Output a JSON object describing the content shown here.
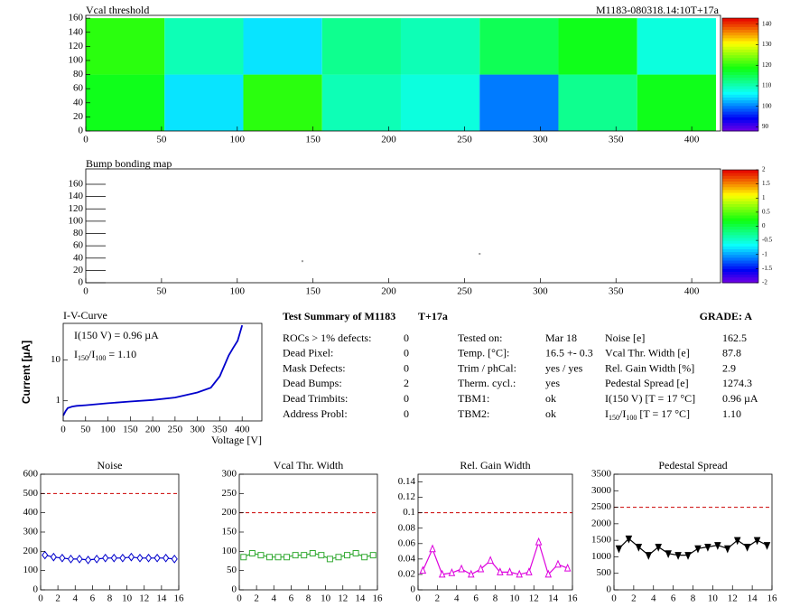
{
  "chart_data": [
    {
      "type": "heatmap",
      "title": "Vcal threshold",
      "subtitle": "M1183-080318.14:10T+17a",
      "xbins": [
        0,
        52,
        104,
        156,
        208,
        260,
        312,
        364,
        416
      ],
      "ybins": [
        0,
        80,
        160
      ],
      "z": [
        [
          118,
          105,
          120,
          110,
          108,
          100,
          112,
          118
        ],
        [
          120,
          110,
          105,
          112,
          110,
          115,
          118,
          108
        ]
      ],
      "xlim": [
        0,
        419
      ],
      "xticks": [
        0,
        50,
        100,
        150,
        200,
        250,
        300,
        350,
        400
      ],
      "ylim": [
        0,
        164
      ],
      "yticks": [
        0,
        20,
        40,
        60,
        80,
        100,
        120,
        140,
        160
      ],
      "zlim": [
        88,
        143
      ],
      "zticks": [
        90,
        100,
        110,
        120,
        130,
        140
      ]
    },
    {
      "type": "scatter",
      "title": "Bump bonding map",
      "x": [
        143,
        260
      ],
      "y": [
        35,
        47
      ],
      "color": "#999999",
      "xlim": [
        0,
        419
      ],
      "xticks": [
        0,
        50,
        100,
        150,
        200,
        250,
        300,
        350,
        400
      ],
      "ylim": [
        0,
        185
      ],
      "yticks": [
        0,
        20,
        40,
        60,
        80,
        100,
        120,
        140,
        160
      ],
      "zlim": [
        -2,
        2
      ],
      "zticks": [
        -2,
        -1.5,
        -1,
        -0.5,
        0,
        0.5,
        1,
        1.5,
        2
      ]
    },
    {
      "type": "line",
      "title": "I-V-Curve",
      "log_y": true,
      "color": "#0000cc",
      "x_label": "Voltage [V]",
      "y_label": "Current [µA]",
      "annotations": [
        [
          "I(150 V) = 0.96 µA"
        ],
        [
          "I",
          "150",
          "/I",
          "100",
          " =  1.10"
        ]
      ],
      "x": [
        0,
        5,
        10,
        20,
        30,
        50,
        100,
        150,
        200,
        250,
        300,
        330,
        350,
        370,
        380,
        390,
        400
      ],
      "values": [
        0.43,
        0.55,
        0.66,
        0.72,
        0.75,
        0.78,
        0.87,
        0.96,
        1.05,
        1.2,
        1.6,
        2.1,
        4,
        13,
        20,
        30,
        72
      ],
      "xlim": [
        0,
        444
      ],
      "xticks": [
        0,
        50,
        100,
        150,
        200,
        250,
        300,
        350,
        400
      ],
      "ylim": [
        0.32,
        80
      ],
      "yticks": [
        1,
        10
      ]
    },
    {
      "type": "line",
      "title": "Noise",
      "color": "#0000cc",
      "marker": "diamond",
      "limit": 500,
      "x": [
        0.5,
        1.5,
        2.5,
        3.5,
        4.5,
        5.5,
        6.5,
        7.5,
        8.5,
        9.5,
        10.5,
        11.5,
        12.5,
        13.5,
        14.5,
        15.5
      ],
      "values": [
        180,
        170,
        165,
        160,
        160,
        155,
        160,
        165,
        165,
        165,
        170,
        165,
        165,
        165,
        165,
        160
      ],
      "xlim": [
        0,
        16
      ],
      "xticks": [
        0,
        2,
        4,
        6,
        8,
        10,
        12,
        14,
        16
      ],
      "ylim": [
        0,
        600
      ],
      "yticks": [
        0,
        100,
        200,
        300,
        400,
        500,
        600
      ]
    },
    {
      "type": "line",
      "title": "Vcal Thr. Width",
      "color": "#33aa33",
      "marker": "square",
      "limit": 200,
      "x": [
        0.5,
        1.5,
        2.5,
        3.5,
        4.5,
        5.5,
        6.5,
        7.5,
        8.5,
        9.5,
        10.5,
        11.5,
        12.5,
        13.5,
        14.5,
        15.5
      ],
      "values": [
        85,
        95,
        90,
        85,
        85,
        85,
        90,
        90,
        95,
        90,
        80,
        85,
        90,
        95,
        85,
        90
      ],
      "xlim": [
        0,
        16
      ],
      "xticks": [
        0,
        2,
        4,
        6,
        8,
        10,
        12,
        14,
        16
      ],
      "ylim": [
        0,
        300
      ],
      "yticks": [
        0,
        50,
        100,
        150,
        200,
        250,
        300
      ]
    },
    {
      "type": "line",
      "title": "Rel. Gain Width",
      "color": "#dd00dd",
      "marker": "triangle-up",
      "limit": 0.1,
      "x": [
        0.5,
        1.5,
        2.5,
        3.5,
        4.5,
        5.5,
        6.5,
        7.5,
        8.5,
        9.5,
        10.5,
        11.5,
        12.5,
        13.5,
        14.5,
        15.5
      ],
      "values": [
        0.025,
        0.053,
        0.02,
        0.022,
        0.027,
        0.02,
        0.027,
        0.038,
        0.023,
        0.023,
        0.02,
        0.023,
        0.062,
        0.02,
        0.033,
        0.028
      ],
      "xlim": [
        0,
        16
      ],
      "xticks": [
        0,
        2,
        4,
        6,
        8,
        10,
        12,
        14,
        16
      ],
      "ylim": [
        0,
        0.15
      ],
      "yticks": [
        0,
        0.02,
        0.04,
        0.06,
        0.08,
        0.1,
        0.12,
        0.14
      ]
    },
    {
      "type": "line",
      "title": "Pedestal Spread",
      "color": "#000000",
      "marker": "triangle-down",
      "limit": 2500,
      "x": [
        0.5,
        1.5,
        2.5,
        3.5,
        4.5,
        5.5,
        6.5,
        7.5,
        8.5,
        9.5,
        10.5,
        11.5,
        12.5,
        13.5,
        14.5,
        15.5
      ],
      "values": [
        1250,
        1550,
        1300,
        1050,
        1300,
        1100,
        1050,
        1050,
        1250,
        1300,
        1350,
        1250,
        1500,
        1300,
        1500,
        1350
      ],
      "xlim": [
        0,
        16
      ],
      "xticks": [
        0,
        2,
        4,
        6,
        8,
        10,
        12,
        14,
        16
      ],
      "ylim": [
        0,
        3500
      ],
      "yticks": [
        0,
        500,
        1000,
        1500,
        2000,
        2500,
        3000,
        3500
      ]
    }
  ],
  "summary": {
    "title": "Test Summary of M1183",
    "tag": "T+17a",
    "grade": "GRADE:  A",
    "columns": [
      [
        [
          "ROCs > 1% defects:",
          "0"
        ],
        [
          "Dead Pixel:",
          "0"
        ],
        [
          "Mask Defects:",
          "0"
        ],
        [
          "Dead Bumps:",
          "2"
        ],
        [
          "Dead Trimbits:",
          "0"
        ],
        [
          "Address Probl:",
          "0"
        ]
      ],
      [
        [
          "Tested on:",
          "Mar 18"
        ],
        [
          "Temp. [°C]:",
          "16.5 +- 0.3"
        ],
        [
          "Trim / phCal:",
          "yes / yes"
        ],
        [
          "Therm. cycl.:",
          "yes"
        ],
        [
          "TBM1:",
          "ok"
        ],
        [
          "TBM2:",
          "ok"
        ]
      ],
      [
        [
          "Noise [e]",
          "162.5"
        ],
        [
          "Vcal Thr. Width [e]",
          "87.8"
        ],
        [
          "Rel. Gain Width [%]",
          "2.9"
        ],
        [
          "Pedestal Spread [e]",
          "1274.3"
        ],
        [
          "I(150 V)  [T = 17 °C]",
          "0.96 µA"
        ],
        [
          [
            "I",
            "150",
            "/I",
            "100",
            "  [T = 17 °C]"
          ],
          "1.10"
        ]
      ]
    ]
  }
}
